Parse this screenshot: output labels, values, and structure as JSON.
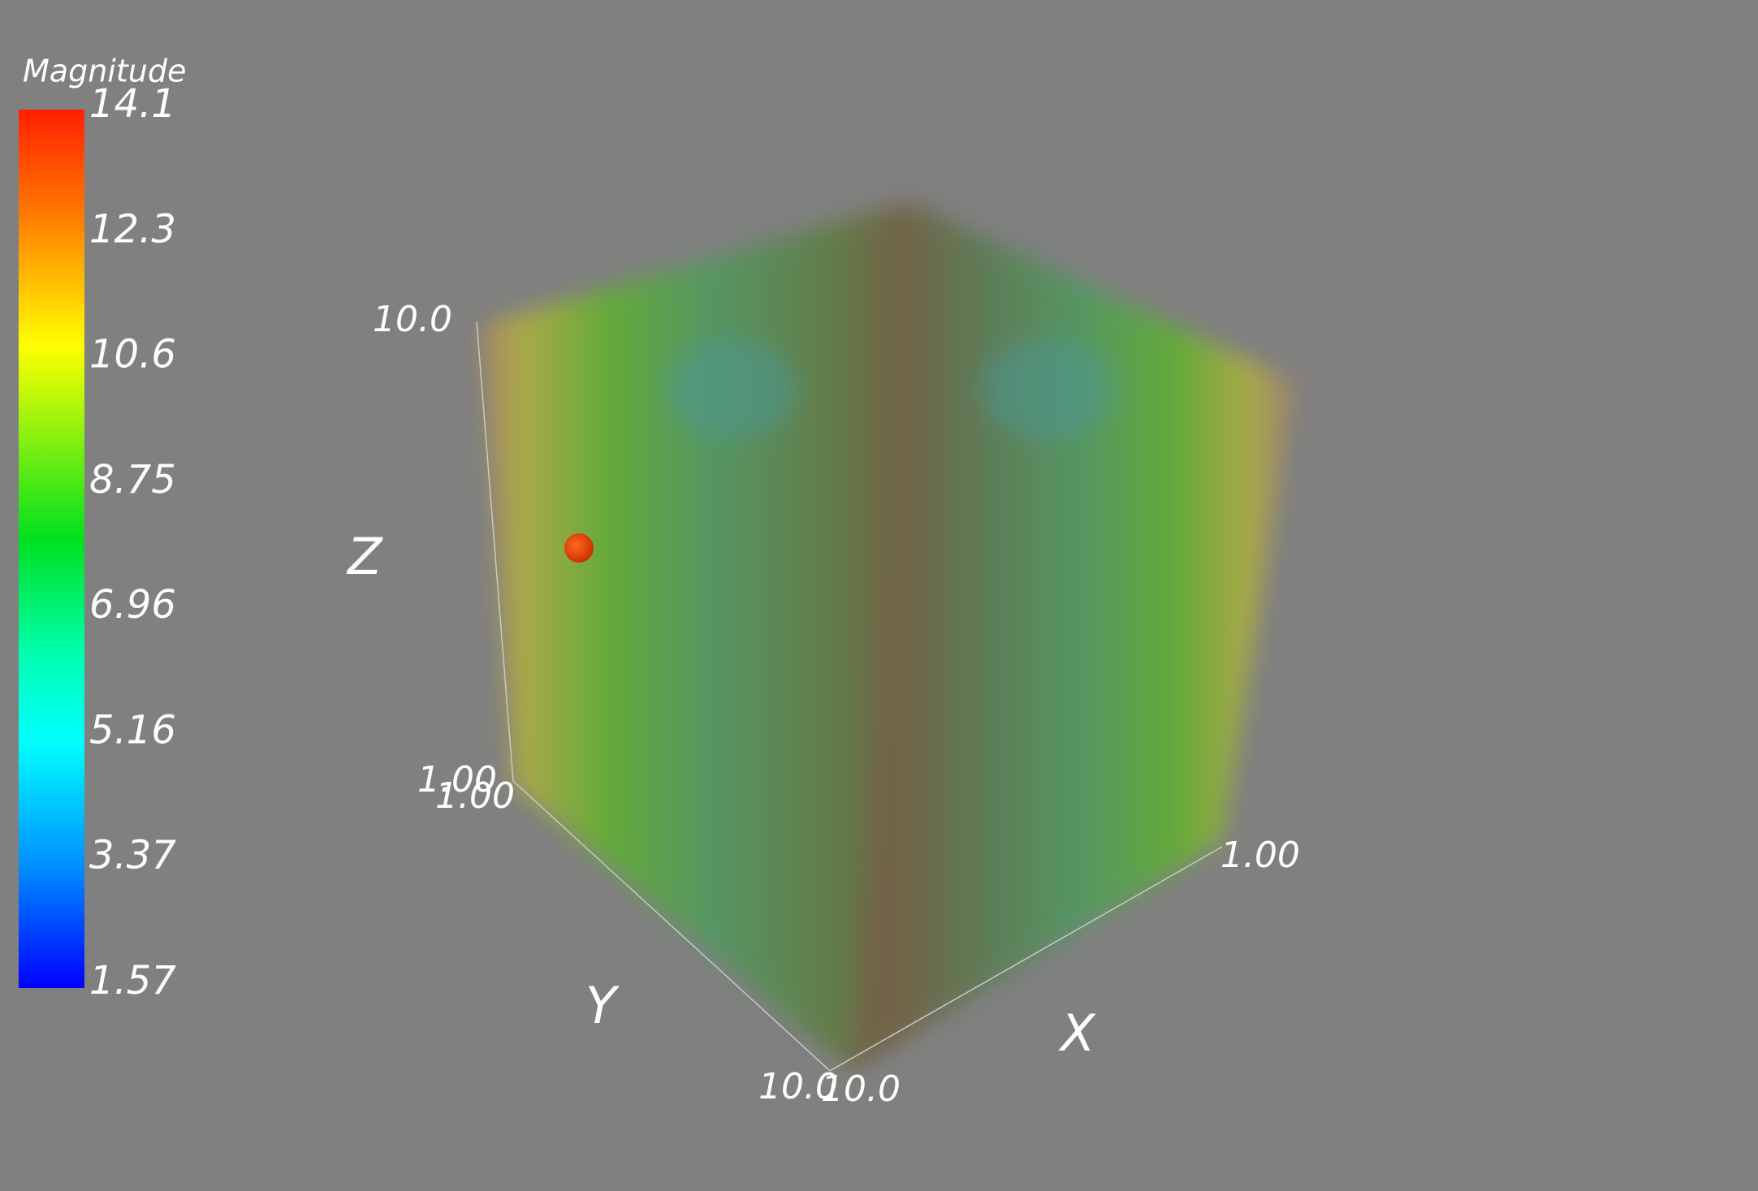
{
  "colorbar": {
    "title": "Magnitude",
    "labels": [
      "14.1",
      "12.3",
      "10.6",
      "8.75",
      "6.96",
      "5.16",
      "3.37",
      "1.57"
    ]
  },
  "axes": {
    "z": {
      "title": "Z",
      "max_label": "10.0",
      "min_label": "1.00"
    },
    "y": {
      "title": "Y",
      "min_label": "1.00",
      "max_label": "10.0"
    },
    "x": {
      "title": "X",
      "max_label": "10.0",
      "min_label": "1.00"
    }
  }
}
